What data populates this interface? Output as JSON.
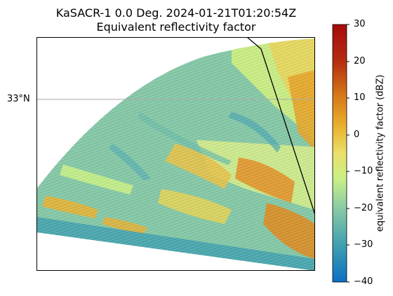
{
  "title_line1": "KaSACR-1 0.0 Deg. 2024-01-21T01:20:54Z",
  "title_line2": "Equivalent reflectivity factor",
  "gridline_label": "33°N",
  "colorbar": {
    "label": "equivalent reflectivity factor (dBZ)",
    "ticks": [
      "30",
      "20",
      "10",
      "0",
      "−10",
      "−20",
      "−30",
      "−40"
    ],
    "min": -40,
    "max": 30,
    "colors": [
      "#0a6fc4",
      "#3f9fb0",
      "#86c8a6",
      "#c9ef86",
      "#ebe06a",
      "#e9b430",
      "#d77a18",
      "#b52c10",
      "#a50b0b"
    ]
  },
  "chart_data": {
    "type": "heatmap",
    "title": "KaSACR-1 0.0 Deg. 2024-01-21T01:20:54Z\nEquivalent reflectivity factor",
    "value_label": "equivalent reflectivity factor (dBZ)",
    "value_range": [
      -40,
      30
    ],
    "colormap": "HomeyerRainbow",
    "gridlines": [
      "33°N"
    ],
    "features": [
      "radar sector sweep",
      "coastline / boundary line"
    ]
  }
}
